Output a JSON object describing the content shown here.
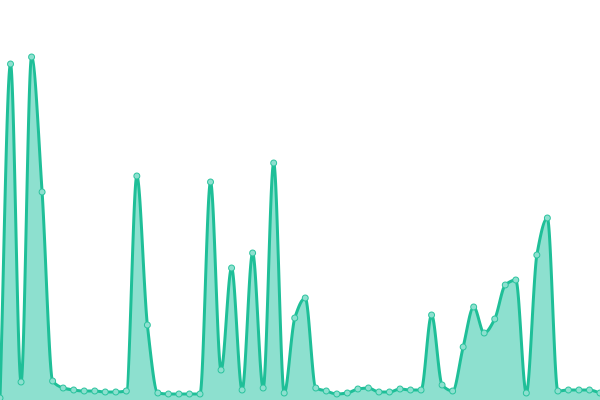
{
  "chart_data": {
    "type": "area",
    "title": "",
    "xlabel": "",
    "ylabel": "",
    "ylim": [
      0,
      400
    ],
    "grid": false,
    "legend": "none",
    "colors": {
      "line": "#1fbf98",
      "fill": "#8de0cf",
      "marker_fill": "#8de0cf",
      "marker_stroke": "#2cc39e"
    },
    "series": [
      {
        "values": [
          2,
          336,
          18,
          343,
          208,
          19,
          12,
          10,
          9,
          9,
          8,
          8,
          9,
          224,
          75,
          7,
          6,
          6,
          6,
          6,
          218,
          30,
          132,
          10,
          147,
          12,
          237,
          7,
          82,
          102,
          12,
          9,
          6,
          7,
          11,
          12,
          8,
          8,
          11,
          10,
          10,
          85,
          15,
          9,
          53,
          93,
          67,
          81,
          115,
          120,
          7,
          145,
          182,
          9,
          10,
          10,
          10,
          7
        ]
      }
    ]
  }
}
